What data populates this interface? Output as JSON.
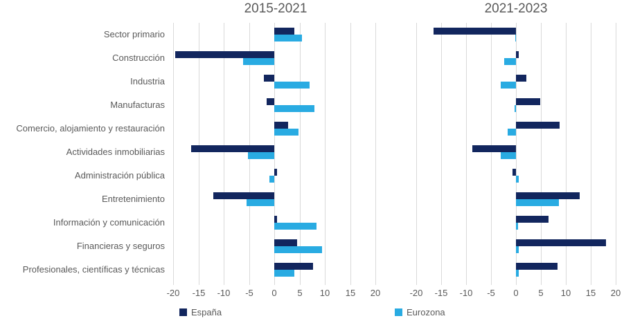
{
  "chart_data": {
    "type": "bar",
    "orientation": "horizontal",
    "grid": true,
    "legend_position": "bottom",
    "x_ticks": [
      -20,
      -15,
      -10,
      -5,
      0,
      5,
      10,
      15,
      20
    ],
    "xlim": [
      -20,
      20
    ],
    "categories": [
      "Sector primario",
      "Construcción",
      "Industria",
      "Manufacturas",
      "Comercio, alojamiento y restauración",
      "Actividades inmobiliarias",
      "Administración pública",
      "Entretenimiento",
      "Información y comunicación",
      "Financieras y seguros",
      "Profesionales, científicas y técnicas"
    ],
    "legend": [
      {
        "label": "España",
        "color": "#12265e"
      },
      {
        "label": "Eurozona",
        "color": "#29abe2"
      }
    ],
    "panels": [
      {
        "title": "2015-2021",
        "series": [
          {
            "name": "España",
            "values": [
              4.0,
              -19.6,
              -2.0,
              -1.5,
              2.7,
              -16.5,
              0.5,
              -12.0,
              0.5,
              4.5,
              7.7
            ]
          },
          {
            "name": "Eurozona",
            "values": [
              5.5,
              -6.1,
              7.0,
              8.0,
              4.8,
              -5.2,
              -1.0,
              -5.5,
              8.4,
              9.4,
              4.0
            ]
          }
        ]
      },
      {
        "title": "2021-2023",
        "series": [
          {
            "name": "España",
            "values": [
              -16.5,
              0.5,
              2.1,
              4.8,
              8.7,
              -8.7,
              -0.7,
              12.8,
              6.5,
              18.0,
              8.3
            ]
          },
          {
            "name": "Eurozona",
            "values": [
              -0.2,
              -2.4,
              -3.0,
              -0.3,
              -1.6,
              -3.0,
              0.6,
              8.6,
              0.4,
              0.5,
              0.5
            ]
          }
        ]
      }
    ],
    "colors": {
      "grid": "#d9d9d9",
      "text": "#595959",
      "background": "#ffffff"
    }
  }
}
